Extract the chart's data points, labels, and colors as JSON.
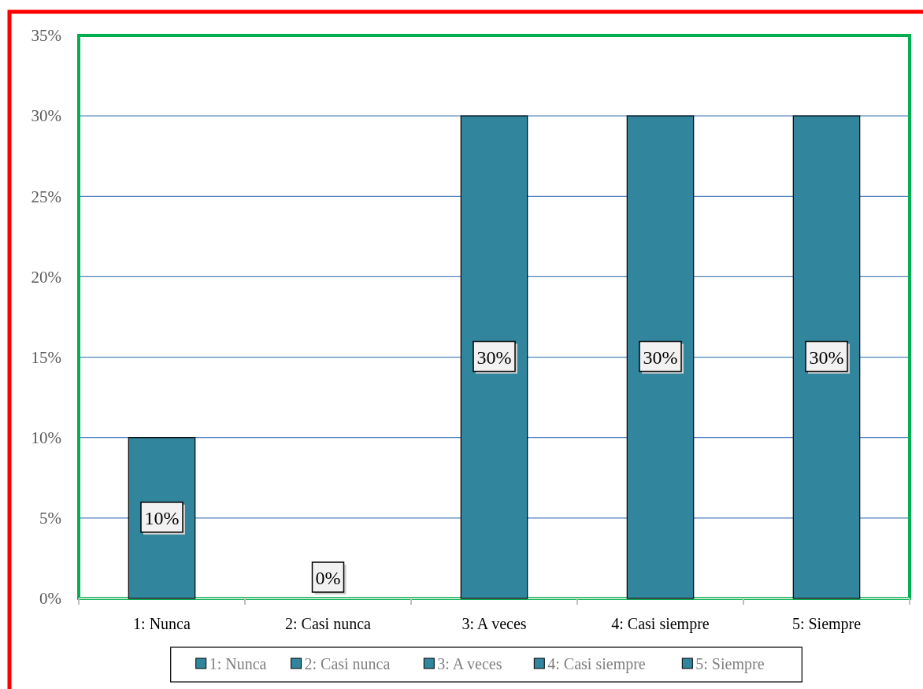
{
  "chart_data": {
    "type": "bar",
    "stacked": true,
    "categories": [
      "1: Nunca",
      "2: Casi nunca",
      "3: A veces",
      "4: Casi siempre",
      "5: Siempre"
    ],
    "series": [
      {
        "name": "1: Nunca",
        "color": "#31859c",
        "values": [
          10,
          null,
          null,
          null,
          null
        ],
        "value_labels": [
          "10%",
          null,
          null,
          null,
          null
        ]
      },
      {
        "name": "2: Casi nunca",
        "color": "#31859c",
        "values": [
          null,
          0,
          null,
          null,
          null
        ],
        "value_labels": [
          null,
          "0%",
          null,
          null,
          null
        ]
      },
      {
        "name": "3: A veces",
        "color": "#31859c",
        "values": [
          null,
          null,
          30,
          null,
          null
        ],
        "value_labels": [
          null,
          null,
          "30%",
          null,
          null
        ]
      },
      {
        "name": "4: Casi siempre",
        "color": "#31859c",
        "values": [
          null,
          null,
          null,
          30,
          null
        ],
        "value_labels": [
          null,
          null,
          null,
          "30%",
          null
        ]
      },
      {
        "name": "5: Siempre",
        "color": "#31859c",
        "values": [
          null,
          null,
          null,
          null,
          30
        ],
        "value_labels": [
          null,
          null,
          null,
          null,
          "30%"
        ]
      }
    ],
    "ylim": [
      0,
      35
    ],
    "yticks": [
      {
        "value": 0,
        "label": "0%"
      },
      {
        "value": 5,
        "label": "5%"
      },
      {
        "value": 10,
        "label": "10%"
      },
      {
        "value": 15,
        "label": "15%"
      },
      {
        "value": 20,
        "label": "20%"
      },
      {
        "value": 25,
        "label": "25%"
      },
      {
        "value": 30,
        "label": "30%"
      },
      {
        "value": 35,
        "label": "35%"
      }
    ],
    "grid": "y",
    "legend": "bottom"
  }
}
